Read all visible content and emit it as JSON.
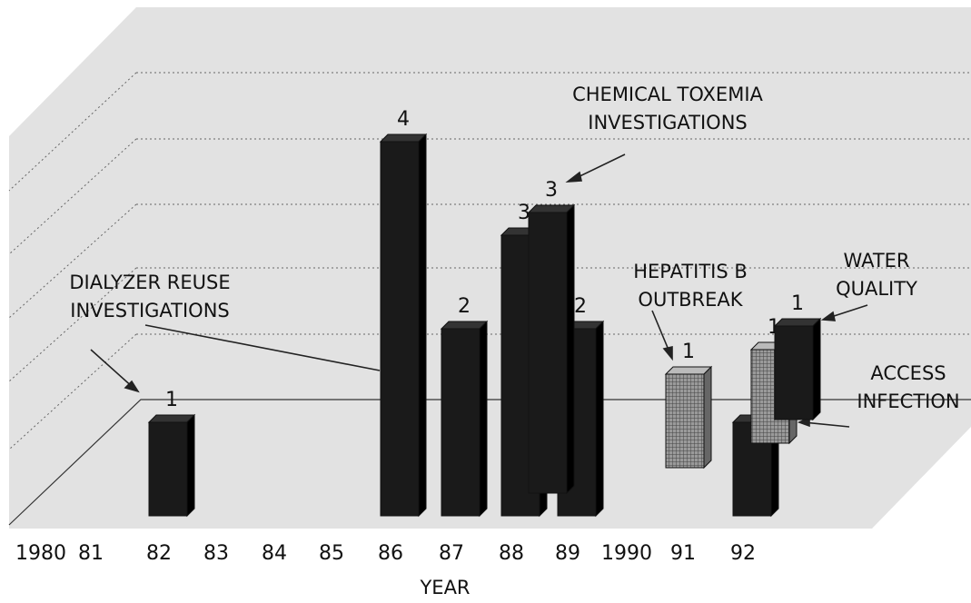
{
  "chart_data": {
    "type": "bar3d",
    "x_label": "YEAR",
    "categories": [
      "1980",
      "81",
      "82",
      "83",
      "84",
      "85",
      "86",
      "87",
      "88",
      "89",
      "1990",
      "91",
      "92"
    ],
    "series": [
      {
        "color": "#1a1a1a",
        "hatch": false,
        "values": [
          null,
          null,
          1,
          null,
          null,
          null,
          4,
          2,
          3,
          2,
          null,
          null,
          1
        ]
      },
      {
        "color": "#1a1a1a",
        "hatch": false,
        "values": [
          null,
          null,
          null,
          null,
          null,
          null,
          null,
          null,
          3,
          null,
          null,
          null,
          null
        ]
      },
      {
        "color": "#8a8a8a",
        "hatch": true,
        "values": [
          null,
          null,
          null,
          null,
          null,
          null,
          null,
          null,
          null,
          null,
          null,
          1,
          null
        ]
      },
      {
        "color": "#8a8a8a",
        "hatch": true,
        "values": [
          null,
          null,
          null,
          null,
          null,
          null,
          null,
          null,
          null,
          null,
          null,
          null,
          1
        ]
      },
      {
        "color": "#1a1a1a",
        "hatch": false,
        "values": [
          null,
          null,
          null,
          null,
          null,
          null,
          null,
          null,
          null,
          null,
          null,
          null,
          1
        ]
      }
    ],
    "annotations": [
      {
        "lines": [
          "CHEMICAL TOXEMIA",
          "INVESTIGATIONS"
        ]
      },
      {
        "lines": [
          "DIALYZER REUSE",
          "INVESTIGATIONS"
        ]
      },
      {
        "lines": [
          "HEPATITIS B",
          "OUTBREAK"
        ]
      },
      {
        "lines": [
          "WATER",
          "QUALITY"
        ]
      },
      {
        "lines": [
          "ACCESS",
          "INFECTION"
        ]
      }
    ]
  }
}
